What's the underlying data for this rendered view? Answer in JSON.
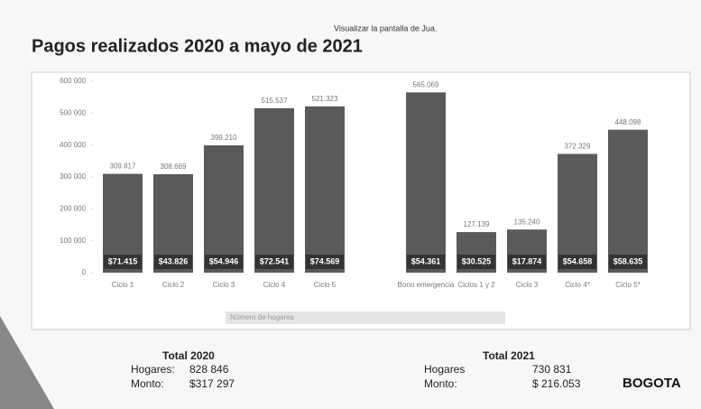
{
  "header": "Visualizar la pantalla de Jua.",
  "chart_data": {
    "type": "bar",
    "title": "Pagos realizados 2020 a mayo de 2021",
    "categories": [
      "Ciclo 1",
      "Ciclo 2",
      "Ciclo 3",
      "Ciclo 4",
      "Ciclo 5",
      "Bono emergencia",
      "Ciclos 1 y 2",
      "Ciclo 3",
      "Ciclo 4*",
      "Ciclo 5*"
    ],
    "series": [
      {
        "name": "Número de hogares",
        "color": "#5a5a5a",
        "values": [
          309817,
          308669,
          399210,
          515537,
          521323,
          565069,
          127139,
          135240,
          372329,
          448098
        ],
        "value_labels": [
          "309.817",
          "308.669",
          "399.210",
          "515.537",
          "521.323",
          "565.069",
          "127.139",
          "135.240",
          "372.329",
          "448.098"
        ]
      }
    ],
    "amount_labels": [
      "$71.415",
      "$43.826",
      "$54.946",
      "$72.541",
      "$74.569",
      "$54.361",
      "$30.525",
      "$17.874",
      "$54.658",
      "$58.635"
    ],
    "ylim": [
      0,
      600000
    ],
    "yticks": [
      {
        "value": 0,
        "label": "0"
      },
      {
        "value": 100000,
        "label": "100 000"
      },
      {
        "value": 200000,
        "label": "200 000"
      },
      {
        "value": 300000,
        "label": "300 000"
      },
      {
        "value": 400000,
        "label": "400 000"
      },
      {
        "value": 500000,
        "label": "500 000"
      },
      {
        "value": 600000,
        "label": "600 000"
      }
    ],
    "legend": "bottom"
  },
  "totals": [
    {
      "title": "Total 2020",
      "hogares_label": "Hogares:",
      "hogares": "828 846",
      "monto_label": "Monto:",
      "monto": "$317 297"
    },
    {
      "title": "Total 2021",
      "hogares_label": "Hogares",
      "hogares": "730 831",
      "monto_label": "Monto:",
      "monto": "$ 216.053"
    }
  ],
  "logo": "BOGOTA"
}
